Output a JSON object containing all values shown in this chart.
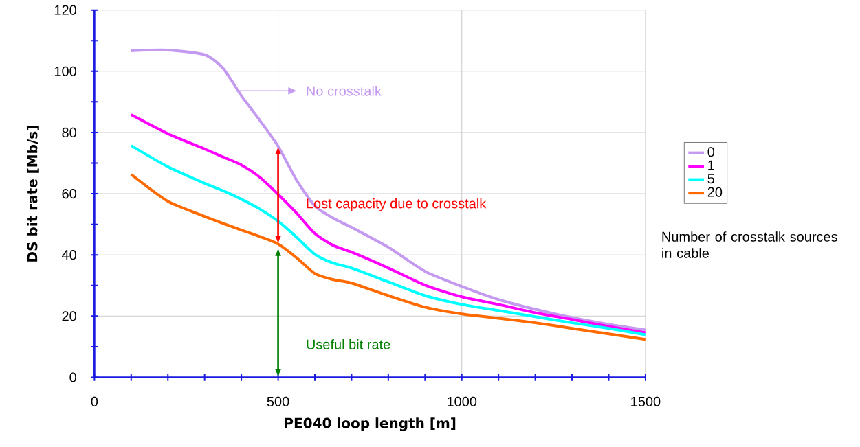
{
  "chart_data": {
    "type": "line",
    "xlabel": "PE040 loop length [m]",
    "ylabel": "DS bit rate [Mb/s]",
    "legend_title": "Number of crosstalk sources in cable",
    "x": [
      100,
      200,
      300,
      350,
      400,
      450,
      500,
      550,
      600,
      650,
      700,
      800,
      900,
      1000,
      1100,
      1200,
      1300,
      1400,
      1500
    ],
    "series": [
      {
        "name": "0",
        "color": "#c49af0",
        "values": [
          106.7,
          106.9,
          105.4,
          101,
          92,
          84,
          75.5,
          64.5,
          56,
          52,
          49,
          42.5,
          34.6,
          29.7,
          25.4,
          22.2,
          19.5,
          17.3,
          15.5
        ]
      },
      {
        "name": "1",
        "color": "#ff00ff",
        "values": [
          85.8,
          79.6,
          74.6,
          72,
          69.4,
          65.4,
          59.8,
          53.7,
          47,
          43.1,
          40.9,
          35.7,
          30.1,
          26.3,
          23.8,
          21.1,
          18.9,
          16.6,
          14.6
        ]
      },
      {
        "name": "5",
        "color": "#00ffff",
        "values": [
          75.7,
          68.8,
          63.4,
          61,
          58.2,
          55,
          51,
          45.8,
          40.2,
          37.3,
          35.7,
          31.2,
          26.7,
          23.8,
          21.8,
          19.8,
          17.8,
          16,
          13.9
        ]
      },
      {
        "name": "20",
        "color": "#ff6a00",
        "values": [
          66.3,
          57.5,
          52.6,
          50.3,
          48.1,
          46,
          43.6,
          39.1,
          33.9,
          31.9,
          30.8,
          26.7,
          22.9,
          20.7,
          19.3,
          17.8,
          16,
          14.2,
          12.4
        ]
      }
    ],
    "xlim": [
      0,
      1500
    ],
    "xticks": [
      0,
      500,
      1000,
      1500
    ],
    "ylim": [
      0,
      120
    ],
    "yticks": [
      0,
      20,
      40,
      60,
      80,
      100,
      120
    ],
    "grid": true,
    "legend": "right",
    "marker": "none",
    "line_style": "solid",
    "annotations": [
      "No crosstalk",
      "Lost capacity due to crosstalk",
      "Useful bit rate"
    ]
  }
}
